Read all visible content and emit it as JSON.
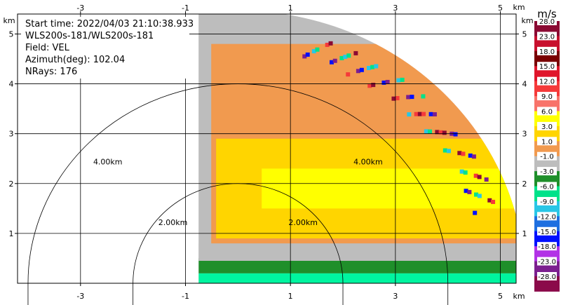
{
  "info": {
    "start_time": "Start time: 2022/04/03 21:10:38.933",
    "instrument": "WLS200s-181/WLS200s-181",
    "field": "Field: VEL",
    "azimuth": "Azimuth(deg): 102.04",
    "nrays": "NRays: 176"
  },
  "axes": {
    "x_unit": "km",
    "y_unit": "km",
    "x_ticks": [
      "-3",
      "-1",
      "1",
      "3",
      "5"
    ],
    "y_ticks": [
      "1",
      "2",
      "3",
      "4",
      "5"
    ]
  },
  "range_rings": [
    "2.00km",
    "4.00km"
  ],
  "colorbar": {
    "unit": "m/s",
    "labels": [
      "28.0",
      "23.0",
      "18.0",
      "15.0",
      "12.0",
      "9.0",
      "6.0",
      "3.0",
      "1.0",
      "-1.0",
      "-3.0",
      "-6.0",
      "-9.0",
      "-12.0",
      "-15.0",
      "-18.0",
      "-23.0",
      "-28.0"
    ]
  },
  "chart_data": {
    "type": "heatmap",
    "title": "",
    "xlabel": "km",
    "ylabel": "km",
    "xlim": [
      -4.2,
      5.3
    ],
    "ylim": [
      0,
      5.4
    ],
    "x_ticks": [
      -3,
      -1,
      1,
      3,
      5
    ],
    "y_ticks": [
      1,
      2,
      3,
      4,
      5
    ],
    "grid": true,
    "range_rings_km": [
      2,
      4
    ],
    "sector": {
      "radius_km": 5.47,
      "x_min_km": -0.75
    },
    "velocity_bands": [
      {
        "label": "approaching strong",
        "from_y_km": 0.0,
        "to_y_km": 0.2,
        "color": "#00f5a0"
      },
      {
        "label": "approaching weak",
        "from_y_km": 0.2,
        "to_y_km": 0.5,
        "color": "#1f8f2a"
      },
      {
        "label": "near zero",
        "from_y_km": 0.45,
        "to_y_km": 0.8,
        "color": "#bdbdbd"
      },
      {
        "label": "receding 1-3",
        "from_y_km": 0.8,
        "to_y_km": 4.8,
        "color": "#f19a4f"
      },
      {
        "label": "receding 6-9",
        "from_y_km": 0.9,
        "to_y_km": 2.9,
        "color": "#ffd500"
      },
      {
        "label": "receding 9+",
        "from_y_km": 1.5,
        "to_y_km": 2.3,
        "color": "#ffff00"
      }
    ],
    "colorbar_colors": [
      "#8b0a33",
      "#c8102e",
      "#7a0000",
      "#e0152b",
      "#f53a3a",
      "#f8736a",
      "#ffff00",
      "#ffd500",
      "#f19a4f",
      "#bdbdbd",
      "#1f8f2a",
      "#00e28a",
      "#29c6e6",
      "#1e6fe0",
      "#0010ff",
      "#b232e6",
      "#7c1f8f",
      "#8b0a4a"
    ],
    "colorbar_values": [
      28.0,
      23.0,
      18.0,
      15.0,
      12.0,
      9.0,
      6.0,
      3.0,
      1.0,
      -1.0,
      -3.0,
      -6.0,
      -9.0,
      -12.0,
      -15.0,
      -18.0,
      -23.0,
      -28.0
    ]
  }
}
